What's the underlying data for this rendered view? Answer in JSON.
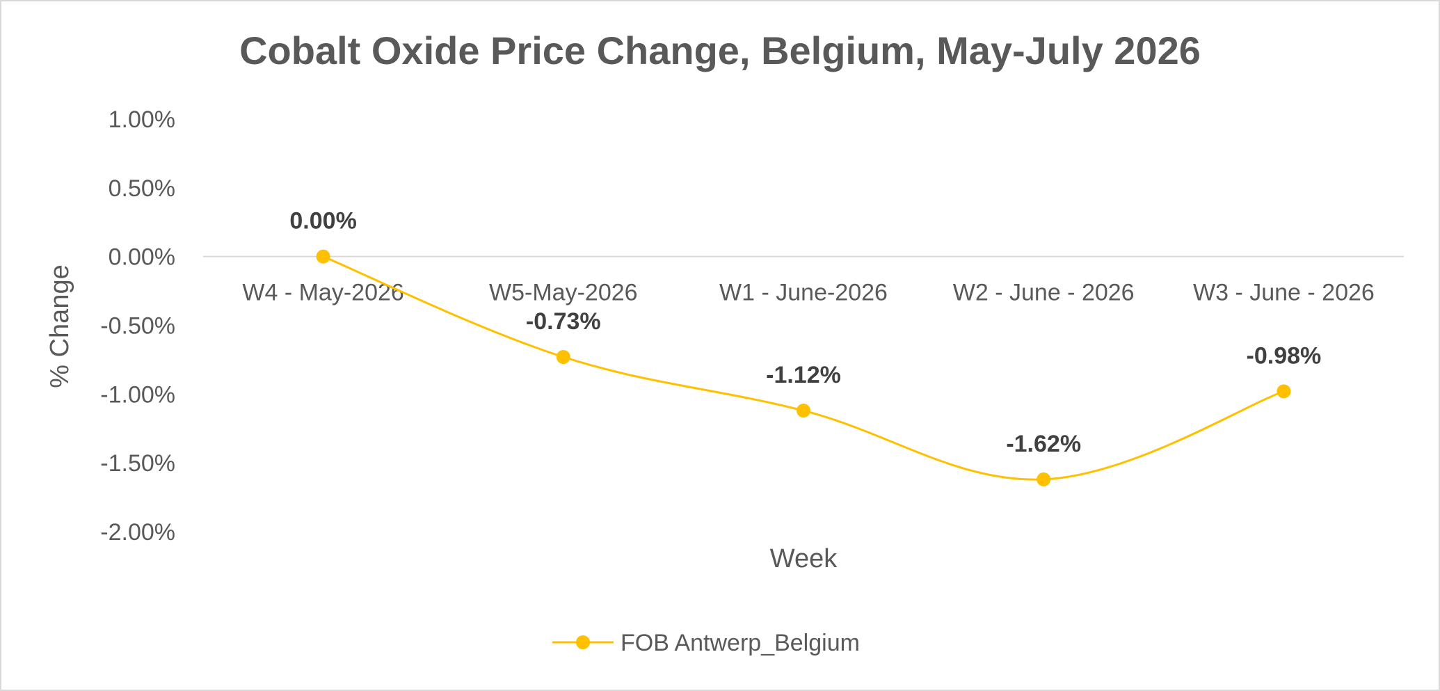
{
  "chart_data": {
    "type": "line",
    "title": "Cobalt Oxide Price Change, Belgium, May-July 2026",
    "xlabel": "Week",
    "ylabel": "% Change",
    "categories": [
      "W4 - May-2026",
      "W5-May-2026",
      "W1 - June-2026",
      "W2 - June - 2026",
      "W3 - June - 2026"
    ],
    "series": [
      {
        "name": "FOB Antwerp_Belgium",
        "values": [
          0.0,
          -0.73,
          -1.12,
          -1.62,
          -0.98
        ],
        "labels": [
          "0.00%",
          "-0.73%",
          "-1.12%",
          "-1.62%",
          "-0.98%"
        ],
        "color": "#FFC000"
      }
    ],
    "ylim": [
      -2.0,
      1.0
    ],
    "yticks": [
      1.0,
      0.5,
      0.0,
      -0.5,
      -1.0,
      -1.5,
      -2.0
    ],
    "ytick_labels": [
      "1.00%",
      "0.50%",
      "0.00%",
      "-0.50%",
      "-1.00%",
      "-1.50%",
      "-2.00%"
    ],
    "smooth": true,
    "grid": false,
    "legend_position": "bottom"
  }
}
